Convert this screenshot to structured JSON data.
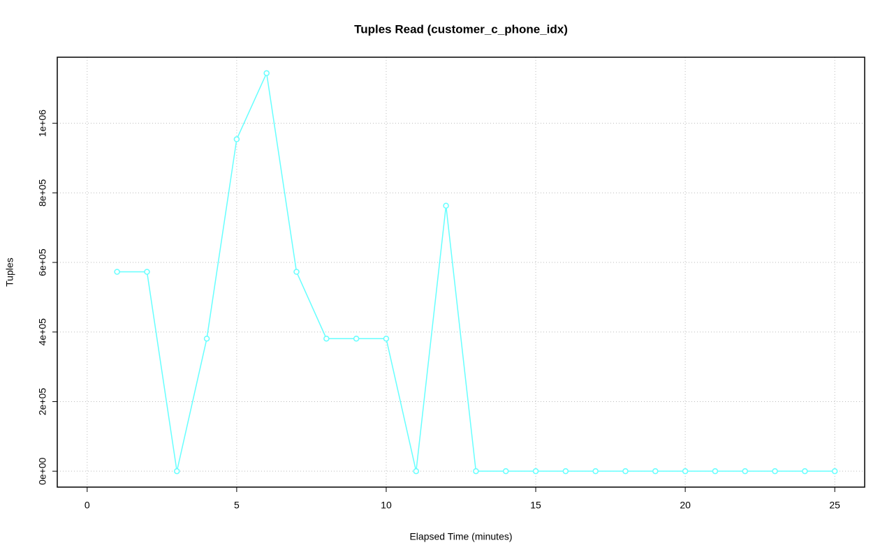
{
  "chart_data": {
    "type": "line",
    "title": "Tuples Read (customer_c_phone_idx)",
    "x_label": "Elapsed Time (minutes)",
    "y_label": "Tuples",
    "x": [
      1,
      2,
      3,
      4,
      5,
      6,
      7,
      8,
      9,
      10,
      11,
      12,
      13,
      14,
      15,
      16,
      17,
      18,
      19,
      20,
      21,
      22,
      23,
      24,
      25
    ],
    "series": [
      {
        "color": "#66ffff",
        "values": [
          573000,
          573000,
          0,
          381000,
          954000,
          1144000,
          573000,
          381000,
          381000,
          381000,
          0,
          763000,
          0,
          0,
          0,
          0,
          0,
          0,
          0,
          0,
          0,
          0,
          0,
          0,
          0
        ]
      }
    ],
    "xlim": [
      -1,
      26
    ],
    "xticks": [
      0,
      5,
      10,
      15,
      20,
      25
    ],
    "ylim": [
      -45760,
      1189760
    ],
    "yticks": [
      {
        "value": 0,
        "label": "0e+00"
      },
      {
        "value": 200000,
        "label": "2e+05"
      },
      {
        "value": 400000,
        "label": "4e+05"
      },
      {
        "value": 600000,
        "label": "6e+05"
      },
      {
        "value": 800000,
        "label": "8e+05"
      },
      {
        "value": 1000000,
        "label": "1e+06"
      }
    ],
    "grid": true
  }
}
